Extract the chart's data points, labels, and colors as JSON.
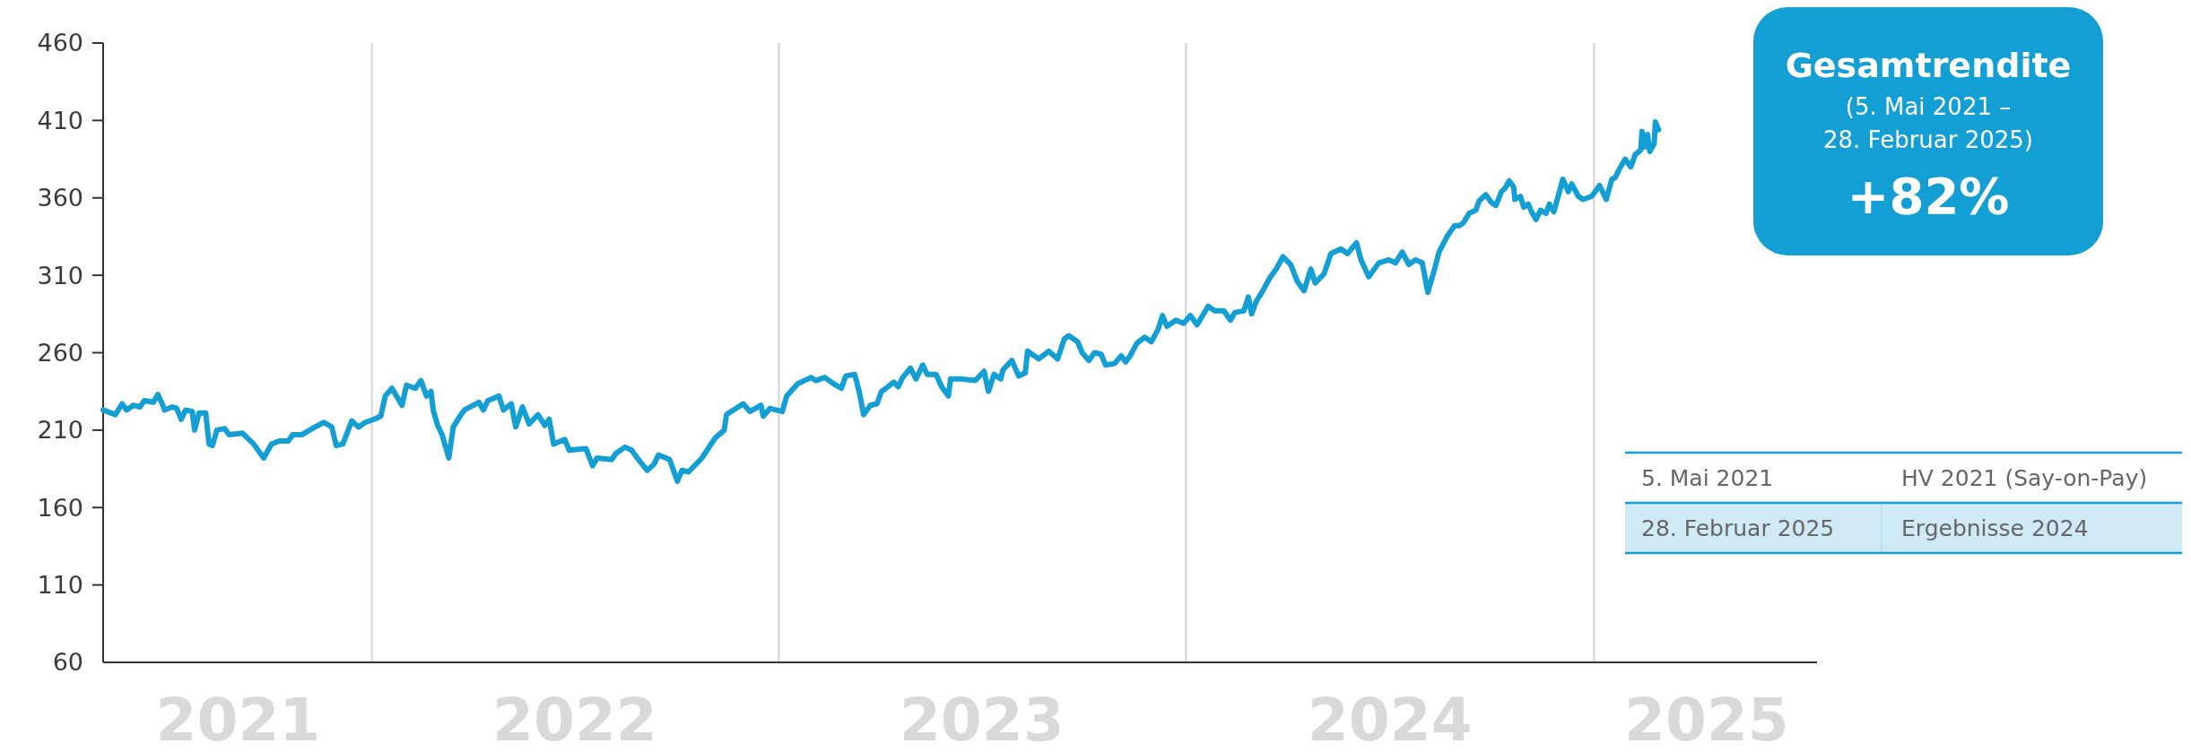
{
  "chart_data": {
    "type": "line",
    "x": [
      "2021-05-05",
      "2021-05-16",
      "2021-05-22",
      "2021-05-26",
      "2021-06-01",
      "2021-06-07",
      "2021-06-11",
      "2021-06-19",
      "2021-06-23",
      "2021-06-27",
      "2021-06-29",
      "2021-07-06",
      "2021-07-10",
      "2021-07-14",
      "2021-07-18",
      "2021-07-24",
      "2021-07-26",
      "2021-07-30",
      "2021-08-05",
      "2021-08-08",
      "2021-08-11",
      "2021-08-15",
      "2021-08-22",
      "2021-08-26",
      "2021-09-07",
      "2021-09-17",
      "2021-09-26",
      "2021-10-03",
      "2021-10-10",
      "2021-10-18",
      "2021-10-22",
      "2021-10-30",
      "2021-11-11",
      "2021-11-19",
      "2021-11-26",
      "2021-11-30",
      "2021-12-06",
      "2021-12-14",
      "2021-12-20",
      "2021-12-26",
      "2022-01-03",
      "2022-01-09",
      "2022-01-13",
      "2022-01-19",
      "2022-01-28",
      "2022-02-01",
      "2022-02-09",
      "2022-02-14",
      "2022-02-19",
      "2022-02-23",
      "2022-02-25",
      "2022-03-01",
      "2022-03-05",
      "2022-03-11",
      "2022-03-15",
      "2022-03-21",
      "2022-03-25",
      "2022-04-07",
      "2022-04-11",
      "2022-04-15",
      "2022-04-25",
      "2022-04-29",
      "2022-05-06",
      "2022-05-10",
      "2022-05-16",
      "2022-05-22",
      "2022-05-30",
      "2022-06-05",
      "2022-06-09",
      "2022-06-13",
      "2022-06-23",
      "2022-06-27",
      "2022-07-12",
      "2022-07-18",
      "2022-07-22",
      "2022-08-04",
      "2022-08-08",
      "2022-08-16",
      "2022-08-22",
      "2022-08-28",
      "2022-09-05",
      "2022-09-11",
      "2022-09-15",
      "2022-09-25",
      "2022-10-02",
      "2022-10-06",
      "2022-10-12",
      "2022-10-24",
      "2022-11-05",
      "2022-11-13",
      "2022-11-15",
      "2022-11-30",
      "2022-12-06",
      "2022-12-16",
      "2022-12-18",
      "2022-12-24",
      "2023-01-04",
      "2023-01-08",
      "2023-01-18",
      "2023-01-30",
      "2023-02-03",
      "2023-02-11",
      "2023-02-19",
      "2023-02-26",
      "2023-03-02",
      "2023-03-10",
      "2023-03-14",
      "2023-03-18",
      "2023-03-24",
      "2023-03-30",
      "2023-04-03",
      "2023-04-07",
      "2023-04-14",
      "2023-04-18",
      "2023-04-22",
      "2023-04-29",
      "2023-05-04",
      "2023-05-10",
      "2023-05-14",
      "2023-05-22",
      "2023-05-27",
      "2023-06-02",
      "2023-06-04",
      "2023-06-14",
      "2023-06-26",
      "2023-07-04",
      "2023-07-08",
      "2023-07-13",
      "2023-07-19",
      "2023-07-21",
      "2023-07-29",
      "2023-08-04",
      "2023-08-10",
      "2023-08-12",
      "2023-08-22",
      "2023-08-31",
      "2023-09-08",
      "2023-09-14",
      "2023-09-18",
      "2023-09-26",
      "2023-09-30",
      "2023-10-06",
      "2023-10-11",
      "2023-10-17",
      "2023-10-21",
      "2023-10-29",
      "2023-11-04",
      "2023-11-08",
      "2023-11-12",
      "2023-11-18",
      "2023-11-25",
      "2023-12-01",
      "2023-12-07",
      "2023-12-11",
      "2023-12-15",
      "2023-12-23",
      "2023-12-30",
      "2024-01-05",
      "2024-01-11",
      "2024-01-21",
      "2024-01-27",
      "2024-02-04",
      "2024-02-10",
      "2024-02-14",
      "2024-02-22",
      "2024-02-26",
      "2024-02-29",
      "2024-03-04",
      "2024-03-10",
      "2024-03-16",
      "2024-03-22",
      "2024-03-28",
      "2024-04-04",
      "2024-04-10",
      "2024-04-16",
      "2024-04-22",
      "2024-04-26",
      "2024-05-04",
      "2024-05-10",
      "2024-05-19",
      "2024-05-25",
      "2024-06-02",
      "2024-06-06",
      "2024-06-13",
      "2024-06-22",
      "2024-07-01",
      "2024-07-07",
      "2024-07-13",
      "2024-07-19",
      "2024-07-25",
      "2024-07-31",
      "2024-08-05",
      "2024-08-11",
      "2024-08-15",
      "2024-08-23",
      "2024-08-29",
      "2024-09-02",
      "2024-09-06",
      "2024-09-11",
      "2024-09-17",
      "2024-09-20",
      "2024-09-26",
      "2024-10-01",
      "2024-10-05",
      "2024-10-10",
      "2024-10-13",
      "2024-10-17",
      "2024-10-21",
      "2024-10-22",
      "2024-10-27",
      "2024-10-30",
      "2024-11-03",
      "2024-11-06",
      "2024-11-10",
      "2024-11-14",
      "2024-11-19",
      "2024-11-22",
      "2024-11-26",
      "2024-12-01",
      "2024-12-04",
      "2024-12-09",
      "2024-12-12",
      "2024-12-18",
      "2024-12-22",
      "2024-12-30",
      "2025-01-06",
      "2025-01-12",
      "2025-01-17",
      "2025-01-20",
      "2025-01-24",
      "2025-01-29",
      "2025-02-03",
      "2025-02-07",
      "2025-02-12",
      "2025-02-13",
      "2025-02-16",
      "2025-02-18",
      "2025-02-20",
      "2025-02-24",
      "2025-02-25",
      "2025-02-28"
    ],
    "series": [
      {
        "color": "#149fd4",
        "values": [
          223,
          220,
          227,
          223,
          226,
          225,
          229,
          228,
          233,
          227,
          223,
          225,
          224,
          217,
          223,
          222,
          210,
          221,
          221,
          201,
          200,
          210,
          211,
          207,
          208,
          201,
          192,
          201,
          203,
          203,
          207,
          207,
          212,
          215,
          212,
          200,
          201,
          216,
          212,
          215,
          217,
          219,
          232,
          237,
          226,
          239,
          237,
          242,
          232,
          235,
          223,
          213,
          207,
          192,
          212,
          219,
          223,
          228,
          223,
          229,
          232,
          223,
          227,
          212,
          225,
          214,
          220,
          213,
          217,
          201,
          204,
          197,
          198,
          187,
          192,
          191,
          195,
          199,
          197,
          191,
          184,
          188,
          194,
          191,
          177,
          184,
          183,
          192,
          205,
          210,
          220,
          227,
          222,
          226,
          219,
          224,
          222,
          232,
          240,
          244,
          242,
          244,
          240,
          237,
          245,
          246,
          235,
          220,
          226,
          227,
          235,
          237,
          241,
          238,
          244,
          250,
          243,
          252,
          246,
          246,
          238,
          232,
          243,
          243,
          242,
          248,
          235,
          246,
          243,
          249,
          255,
          245,
          247,
          261,
          256,
          261,
          256,
          269,
          271,
          267,
          260,
          255,
          260,
          259,
          252,
          253,
          258,
          254,
          258,
          266,
          270,
          267,
          275,
          284,
          277,
          281,
          279,
          284,
          278,
          290,
          287,
          287,
          281,
          286,
          287,
          296,
          285,
          293,
          300,
          308,
          314,
          322,
          317,
          306,
          300,
          314,
          305,
          311,
          324,
          327,
          324,
          331,
          320,
          309,
          318,
          320,
          318,
          325,
          317,
          320,
          318,
          299,
          314,
          325,
          336,
          342,
          342,
          344,
          350,
          352,
          358,
          362,
          357,
          355,
          364,
          366,
          371,
          367,
          359,
          361,
          354,
          356,
          351,
          346,
          352,
          350,
          356,
          351,
          364,
          372,
          364,
          369,
          361,
          359,
          361,
          368,
          359,
          372,
          373,
          379,
          385,
          380,
          388,
          391,
          403,
          393,
          401,
          390,
          395,
          409,
          404
        ]
      }
    ],
    "xlim": [
      "2021-05-05",
      "2025-07-20"
    ],
    "xticks": [
      {
        "value": "2021-09-03",
        "label": "2021"
      },
      {
        "value": "2022-01-01",
        "label": null
      },
      {
        "value": "2022-07-02",
        "label": "2022"
      },
      {
        "value": "2023-01-01",
        "label": null
      },
      {
        "value": "2023-07-02",
        "label": "2023"
      },
      {
        "value": "2024-01-01",
        "label": null
      },
      {
        "value": "2024-07-02",
        "label": "2024"
      },
      {
        "value": "2025-01-01",
        "label": null
      },
      {
        "value": "2025-04-12",
        "label": "2025"
      }
    ],
    "ylim": [
      60,
      460
    ],
    "yticks": [
      60,
      110,
      160,
      210,
      260,
      310,
      360,
      410,
      460
    ],
    "grid": "x",
    "marker": "none",
    "line_style": "solid",
    "annotations": [
      "Gesamtrendite",
      "(5. Mai 2021 – 28. Februar 2025)",
      "+82%",
      "5. Mai 2021",
      "HV 2021 (Say-on-Pay)",
      "28. Februar 2025",
      "Ergebnisse 2024"
    ]
  }
}
